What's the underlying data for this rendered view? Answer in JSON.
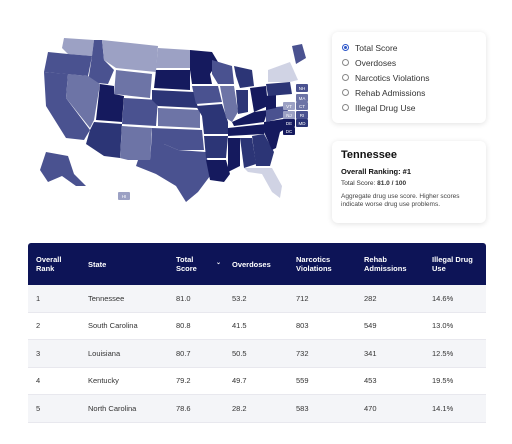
{
  "map": {
    "small_state_boxes": [
      "NH",
      "MA",
      "VT",
      "CT",
      "NJ",
      "RI",
      "DE",
      "MD",
      "DC"
    ],
    "hi_label": "HI"
  },
  "options": {
    "items": [
      {
        "label": "Total Score",
        "selected": true
      },
      {
        "label": "Overdoses",
        "selected": false
      },
      {
        "label": "Narcotics Violations",
        "selected": false
      },
      {
        "label": "Rehab Admissions",
        "selected": false
      },
      {
        "label": "Illegal Drug Use",
        "selected": false
      }
    ]
  },
  "info": {
    "state": "Tennessee",
    "ranking": "Overall Ranking: #1",
    "score_label": "Total Score:",
    "score_value": "81.0 / 100",
    "description": "Aggregate drug use score. Higher scores indicate worse drug use problems."
  },
  "table": {
    "headers": [
      "Overall Rank",
      "State",
      "Total Score",
      "Overdoses",
      "Narcotics Violations",
      "Rehab Admissions",
      "Illegal Drug Use"
    ],
    "sort_icon": "chevron-down-icon",
    "rows": [
      [
        "1",
        "Tennessee",
        "81.0",
        "53.2",
        "712",
        "282",
        "14.6%"
      ],
      [
        "2",
        "South Carolina",
        "80.8",
        "41.5",
        "803",
        "549",
        "13.0%"
      ],
      [
        "3",
        "Louisiana",
        "80.7",
        "50.5",
        "732",
        "341",
        "12.5%"
      ],
      [
        "4",
        "Kentucky",
        "79.2",
        "49.7",
        "559",
        "453",
        "19.5%"
      ],
      [
        "5",
        "North Carolina",
        "78.6",
        "28.2",
        "583",
        "470",
        "14.1%"
      ]
    ]
  },
  "colors": {
    "header_bg": "#0d1457",
    "darkest": "#151a5e",
    "dark": "#2c3576",
    "mid": "#4a5290",
    "light": "#6d74a6",
    "lighter": "#9ca1c4",
    "palest": "#d0d3e4"
  }
}
